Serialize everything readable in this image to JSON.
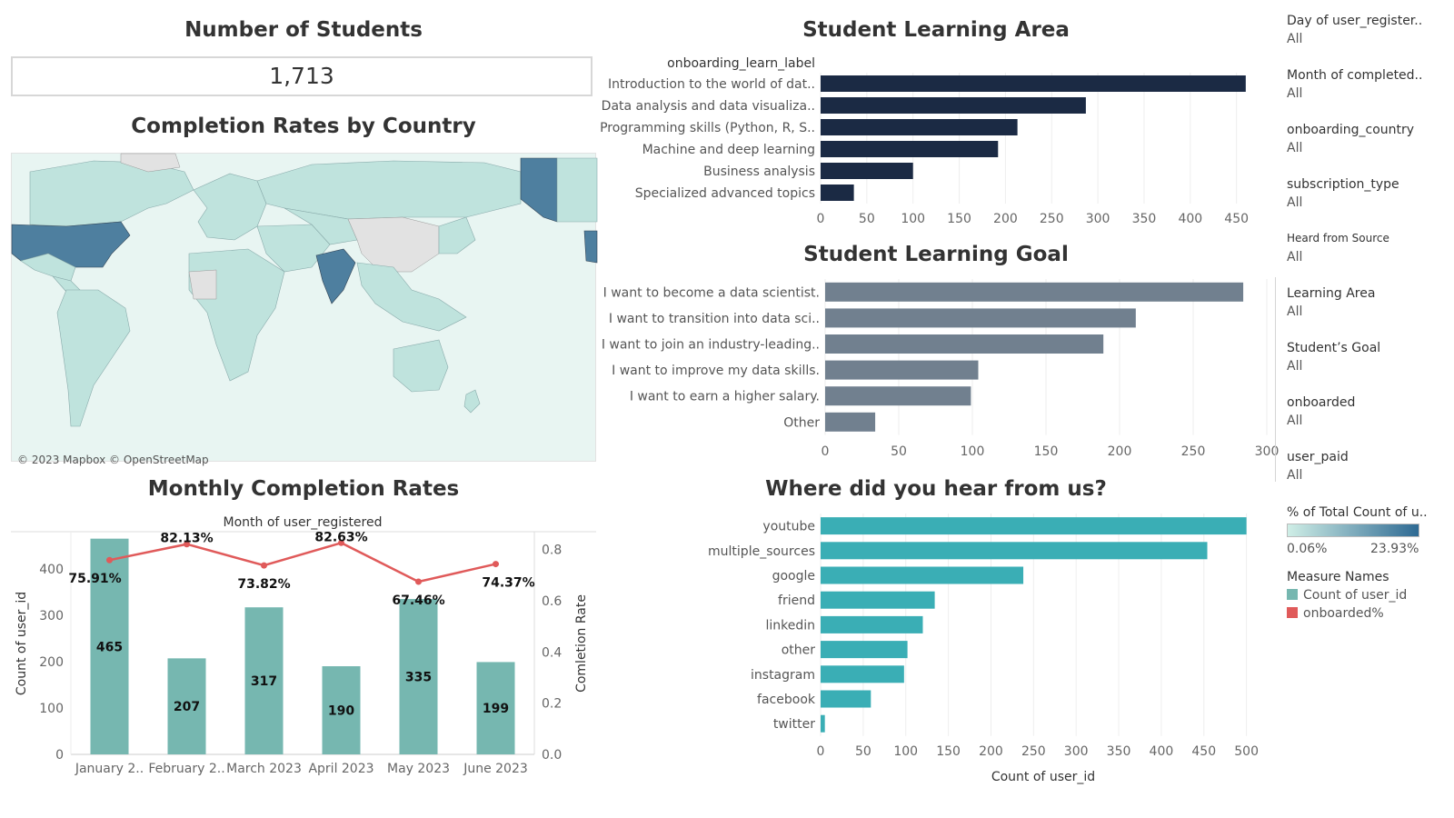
{
  "kpi": {
    "title": "Number of Students",
    "value": "1,713"
  },
  "map": {
    "title": "Completion Rates by Country",
    "attribution": "© 2023 Mapbox © OpenStreetMap"
  },
  "learning_area": {
    "title": "Student Learning Area",
    "header": "onboarding_learn_label",
    "ticks": [
      "0",
      "50",
      "100",
      "150",
      "200",
      "250",
      "300",
      "350",
      "400",
      "450"
    ],
    "color": "#1b2a44"
  },
  "learning_goal": {
    "title": "Student Learning Goal",
    "ticks": [
      "0",
      "50",
      "100",
      "150",
      "200",
      "250",
      "300"
    ],
    "color": "#71808f"
  },
  "hear": {
    "title": "Where did you hear from us?",
    "xlabel": "Count of user_id",
    "ticks": [
      "0",
      "50",
      "100",
      "150",
      "200",
      "250",
      "300",
      "350",
      "400",
      "450",
      "500"
    ],
    "color": "#3aaeb5"
  },
  "monthly": {
    "title": "Monthly Completion Rates",
    "subtitle": "Month of user_registered",
    "ylabel_left": "Count of user_id",
    "ylabel_right": "Comletion Rate",
    "left_ticks": [
      "0",
      "100",
      "200",
      "300",
      "400"
    ],
    "right_ticks": [
      "0.0",
      "0.2",
      "0.4",
      "0.6",
      "0.8"
    ],
    "month_labels": [
      "January 2..",
      "February 2..",
      "March 2023",
      "April 2023",
      "May 2023",
      "June 2023"
    ],
    "count_labels": [
      "465",
      "207",
      "317",
      "190",
      "335",
      "199"
    ],
    "rate_labels": [
      "75.91%",
      "82.13%",
      "73.82%",
      "82.63%",
      "67.46%",
      "74.37%"
    ],
    "bar_color": "#76b7b0",
    "line_color": "#e05a5a"
  },
  "filters": [
    {
      "label": "Day of user_register..",
      "value": "All"
    },
    {
      "label": "Month of completed..",
      "value": "All"
    },
    {
      "label": "onboarding_country",
      "value": "All"
    },
    {
      "label": "subscription_type",
      "value": "All"
    },
    {
      "label": "Heard from Source",
      "value": "All"
    },
    {
      "label": "Learning Area",
      "value": "All"
    },
    {
      "label": "Student’s Goal",
      "value": "All"
    },
    {
      "label": "onboarded",
      "value": "All"
    },
    {
      "label": "user_paid",
      "value": "All"
    }
  ],
  "legend": {
    "gradient_title": "% of Total Count of u..",
    "gradient_min": "0.06%",
    "gradient_max": "23.93%",
    "measure_title": "Measure Names",
    "measures": [
      {
        "label": "Count of user_id",
        "color": "#76b7b0"
      },
      {
        "label": "onboarded%",
        "color": "#e05a5a"
      }
    ]
  },
  "chart_data": [
    {
      "type": "bar",
      "title": "Student Learning Area",
      "categories": [
        "Introduction to the world of dat..",
        "Data analysis and data visualiza..",
        "Programming skills (Python, R, S..",
        "Machine and deep learning",
        "Business analysis",
        "Specialized advanced topics"
      ],
      "values": [
        460,
        287,
        213,
        192,
        100,
        36
      ],
      "xlim": [
        0,
        470
      ],
      "orientation": "horizontal"
    },
    {
      "type": "bar",
      "title": "Student Learning Goal",
      "categories": [
        "I want to become a data scientist.",
        "I want to transition into data sci..",
        "I want to join an industry-leading..",
        "I want to improve my data skills.",
        "I want to earn a higher salary.",
        "Other"
      ],
      "values": [
        284,
        211,
        189,
        104,
        99,
        34
      ],
      "xlim": [
        0,
        300
      ],
      "orientation": "horizontal"
    },
    {
      "type": "bar",
      "title": "Where did you hear from us?",
      "categories": [
        "youtube",
        "multiple_sources",
        "google",
        "friend",
        "linkedin",
        "other",
        "instagram",
        "facebook",
        "twitter"
      ],
      "values": [
        500,
        454,
        238,
        134,
        120,
        102,
        98,
        59,
        5
      ],
      "xlabel": "Count of user_id",
      "xlim": [
        0,
        510
      ],
      "orientation": "horizontal"
    },
    {
      "type": "bar",
      "title": "Monthly Completion Rates",
      "categories": [
        "January 2..",
        "February 2..",
        "March 2023",
        "April 2023",
        "May 2023",
        "June 2023"
      ],
      "series": [
        {
          "name": "Count of user_id",
          "values": [
            465,
            207,
            317,
            190,
            335,
            199
          ]
        },
        {
          "name": "onboarded%",
          "values": [
            0.7591,
            0.8213,
            0.7382,
            0.8263,
            0.6746,
            0.7437
          ]
        }
      ],
      "ylim": [
        0,
        480
      ],
      "ylim_right": [
        0,
        0.87
      ]
    }
  ]
}
